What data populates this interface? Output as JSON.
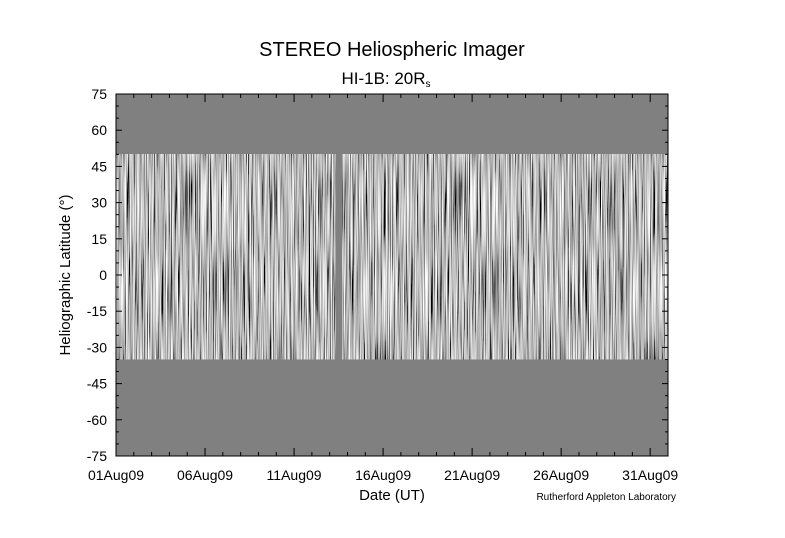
{
  "chart_data": {
    "type": "heatmap",
    "title": "STEREO Heliospheric Imager",
    "subtitle_main": "HI-1B: 20R",
    "subtitle_sub": "s",
    "xlabel": "Date (UT)",
    "ylabel": "Heliographic Latitude (°)",
    "credit": "Rutherford Appleton Laboratory",
    "x_ticks": [
      "01Aug09",
      "06Aug09",
      "11Aug09",
      "16Aug09",
      "21Aug09",
      "26Aug09",
      "31Aug09"
    ],
    "x_tick_days": [
      1,
      6,
      11,
      16,
      21,
      26,
      31
    ],
    "xlim_days": [
      1,
      32
    ],
    "ylim": [
      -75,
      75
    ],
    "y_ticks": [
      75,
      60,
      45,
      30,
      15,
      0,
      -15,
      -30,
      -45,
      -60,
      -75
    ],
    "data_lat_range": [
      -35,
      50
    ],
    "data_gap_days": [
      13.35,
      13.7
    ],
    "background_color": "#808080",
    "colormap": "grayscale"
  }
}
